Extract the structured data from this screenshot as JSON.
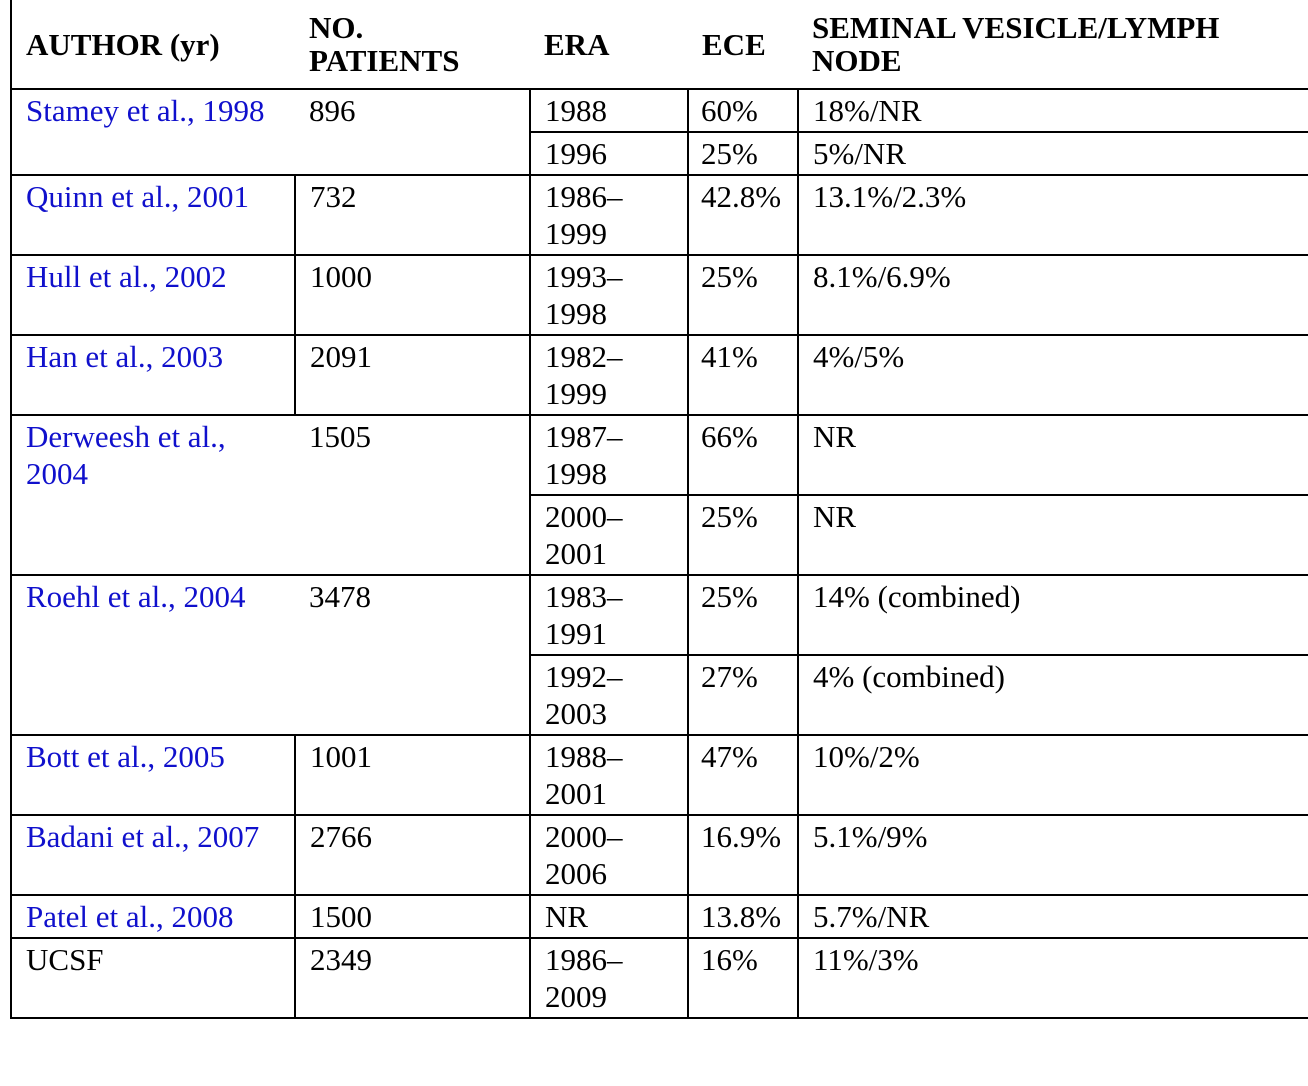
{
  "headers": {
    "author": "AUTHOR (yr)",
    "patients": "NO. PATIENTS",
    "era": "ERA",
    "ece": "ECE",
    "sv_ln": "SEMINAL VESICLE/LYMPH NODE"
  },
  "rows": [
    {
      "author": "Stamey et al., 1998",
      "patients": "896",
      "eras": [
        {
          "era": "1988",
          "ece": "60%",
          "sv_ln": "18%/NR"
        },
        {
          "era": "1996",
          "ece": "25%",
          "sv_ln": "5%/NR"
        }
      ]
    },
    {
      "author": "Quinn et al., 2001",
      "patients": "732",
      "eras": [
        {
          "era": "1986–1999",
          "ece": "42.8%",
          "sv_ln": "13.1%/2.3%"
        }
      ]
    },
    {
      "author": "Hull et al., 2002",
      "patients": "1000",
      "eras": [
        {
          "era": "1993–1998",
          "ece": "25%",
          "sv_ln": "8.1%/6.9%"
        }
      ]
    },
    {
      "author": "Han et al., 2003",
      "patients": "2091",
      "eras": [
        {
          "era": "1982–1999",
          "ece": "41%",
          "sv_ln": "4%/5%"
        }
      ]
    },
    {
      "author": "Derweesh et al., 2004",
      "patients": "1505",
      "eras": [
        {
          "era": "1987–1998",
          "ece": "66%",
          "sv_ln": "NR"
        },
        {
          "era": "2000–2001",
          "ece": "25%",
          "sv_ln": "NR"
        }
      ]
    },
    {
      "author": "Roehl et al., 2004",
      "patients": "3478",
      "eras": [
        {
          "era": "1983–1991",
          "ece": "25%",
          "sv_ln": "14% (combined)"
        },
        {
          "era": "1992–2003",
          "ece": "27%",
          "sv_ln": "4% (combined)"
        }
      ]
    },
    {
      "author": "Bott et al., 2005",
      "patients": "1001",
      "eras": [
        {
          "era": "1988–2001",
          "ece": "47%",
          "sv_ln": "10%/2%"
        }
      ]
    },
    {
      "author": "Badani et al., 2007",
      "patients": "2766",
      "eras": [
        {
          "era": "2000–2006",
          "ece": "16.9%",
          "sv_ln": "5.1%/9%"
        }
      ]
    },
    {
      "author": "Patel et al., 2008",
      "patients": "1500",
      "eras": [
        {
          "era": "NR",
          "ece": "13.8%",
          "sv_ln": "5.7%/NR"
        }
      ]
    },
    {
      "author": "UCSF",
      "patients": "2349",
      "eras": [
        {
          "era": "1986–2009",
          "ece": "16%",
          "sv_ln": "11%/3%"
        }
      ]
    }
  ],
  "link_color": "#1010cc"
}
